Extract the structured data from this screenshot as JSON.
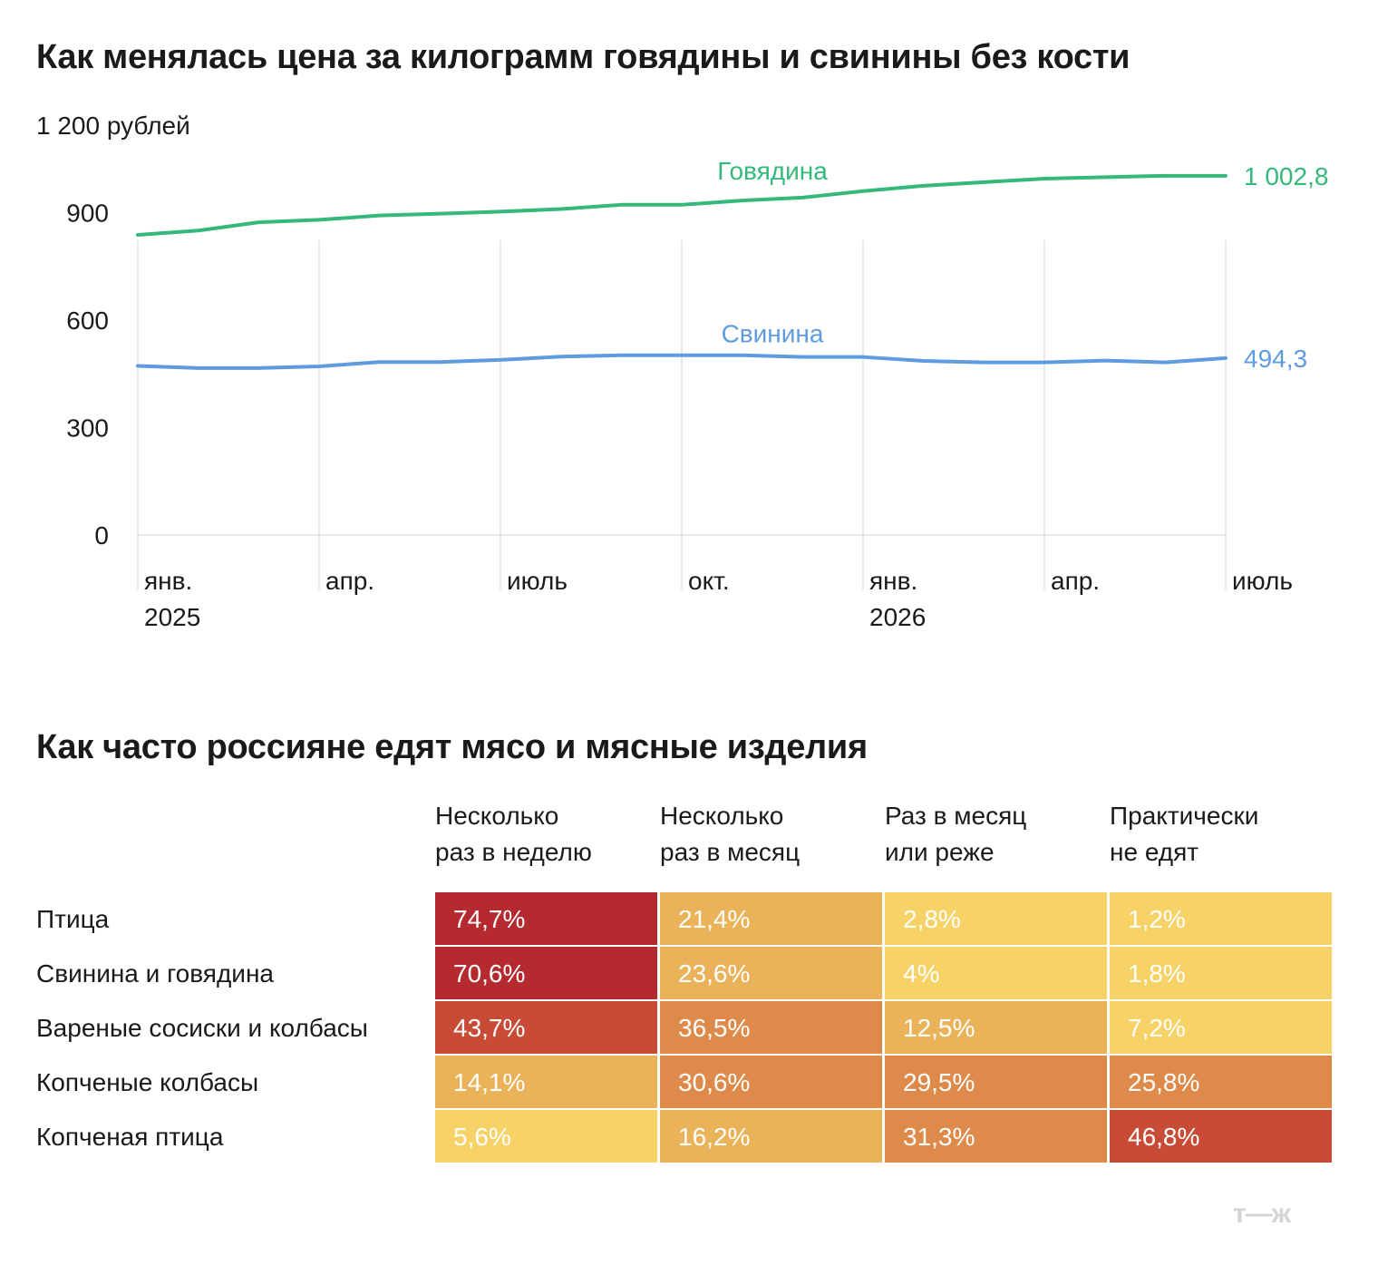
{
  "chart_data": [
    {
      "type": "line",
      "title": "Как менялась цена за килограмм говядины и свинины без кости",
      "ylabel": "1 200 рублей",
      "ylim": [
        0,
        1200
      ],
      "yticks": [
        "0",
        "300",
        "600",
        "900"
      ],
      "ytick_values": [
        0,
        300,
        600,
        900
      ],
      "x_ticks": [
        {
          "label": "янв.",
          "sublabel": "2025",
          "index": 0
        },
        {
          "label": "апр.",
          "sublabel": "",
          "index": 3
        },
        {
          "label": "июль",
          "sublabel": "",
          "index": 6
        },
        {
          "label": "окт.",
          "sublabel": "",
          "index": 9
        },
        {
          "label": "янв.",
          "sublabel": "2026",
          "index": 12
        },
        {
          "label": "апр.",
          "sublabel": "",
          "index": 15
        },
        {
          "label": "июль",
          "sublabel": "",
          "index": 18
        }
      ],
      "n_points": 19,
      "grid": true,
      "series": [
        {
          "name": "Говядина",
          "color": "#34b97a",
          "end_label": "1 002,8",
          "values": [
            838,
            850,
            873,
            880,
            892,
            897,
            903,
            910,
            922,
            922,
            934,
            942,
            960,
            975,
            985,
            995,
            999,
            1003,
            1003
          ]
        },
        {
          "name": "Свинина",
          "color": "#5f9be0",
          "end_label": "494,3",
          "values": [
            472,
            466,
            466,
            471,
            483,
            483,
            489,
            498,
            502,
            502,
            502,
            497,
            497,
            486,
            482,
            482,
            487,
            482,
            494
          ]
        }
      ]
    },
    {
      "type": "heatmap",
      "title": "Как часто россияне едят мясо и мясные изделия",
      "columns": [
        "Несколько\nраз в неделю",
        "Несколько\nраз в месяц",
        "Раз в месяц\nили реже",
        "Практически\nне едят"
      ],
      "rows": [
        "Птица",
        "Свинина и говядина",
        "Вареные сосиски и колбасы",
        "Копченые колбасы",
        "Копченая птица"
      ],
      "values": [
        [
          74.7,
          21.4,
          2.8,
          1.2
        ],
        [
          70.6,
          23.6,
          4,
          1.8
        ],
        [
          43.7,
          36.5,
          12.5,
          7.2
        ],
        [
          14.1,
          30.6,
          29.5,
          25.8
        ],
        [
          5.6,
          16.2,
          31.3,
          46.8
        ]
      ],
      "labels": [
        [
          "74,7%",
          "21,4%",
          "2,8%",
          "1,2%"
        ],
        [
          "70,6%",
          "23,6%",
          "4%",
          "1,8%"
        ],
        [
          "43,7%",
          "36,5%",
          "12,5%",
          "7,2%"
        ],
        [
          "14,1%",
          "30,6%",
          "29,5%",
          "25,8%"
        ],
        [
          "5,6%",
          "16,2%",
          "31,3%",
          "46,8%"
        ]
      ],
      "color_scale": [
        "#f7d266",
        "#eab35a",
        "#de8a4a",
        "#c84b36",
        "#b52a2f"
      ]
    }
  ],
  "logo": "т—ж"
}
